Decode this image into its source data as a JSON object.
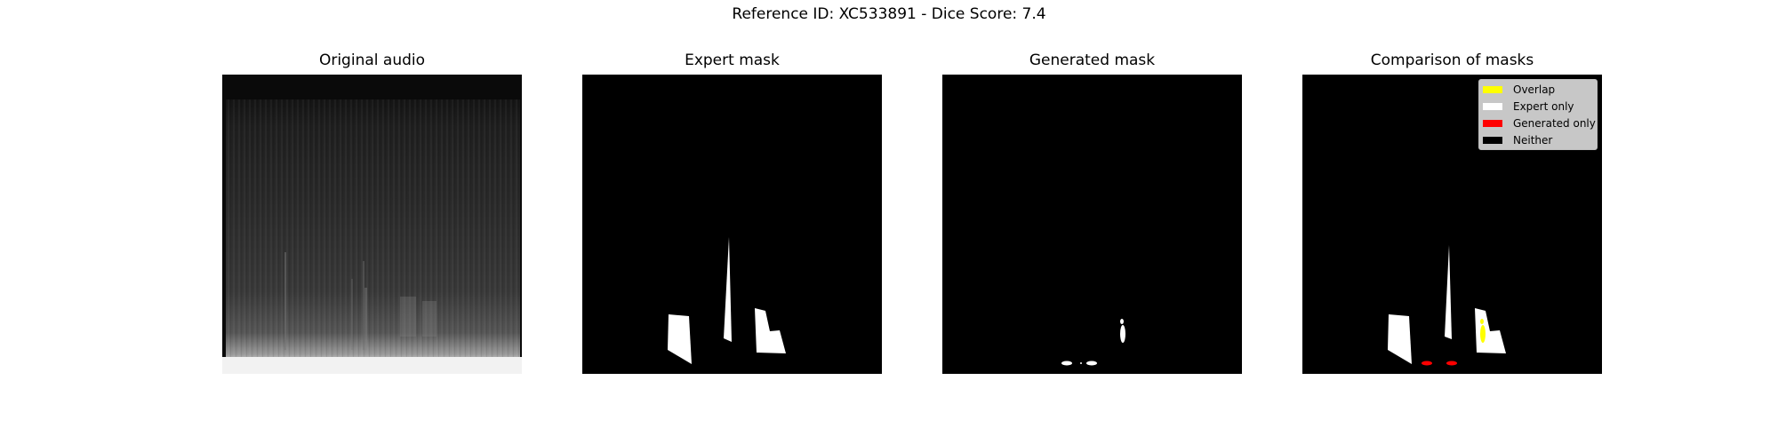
{
  "figure": {
    "title": "Reference ID: XC533891 - Dice Score: 7.4"
  },
  "panels": {
    "original": {
      "title": "Original audio"
    },
    "expert": {
      "title": "Expert mask"
    },
    "generated": {
      "title": "Generated mask"
    },
    "comparison": {
      "title": "Comparison of masks"
    }
  },
  "legend": {
    "items": [
      {
        "label": "Overlap",
        "color": "#ffff00"
      },
      {
        "label": "Expert only",
        "color": "#ffffff"
      },
      {
        "label": "Generated only",
        "color": "#ff0000"
      },
      {
        "label": "Neither",
        "color": "#000000"
      }
    ]
  },
  "colors": {
    "background": "#000000",
    "mask": "#ffffff",
    "overlap": "#ffff00",
    "generated_only": "#ff0000"
  }
}
